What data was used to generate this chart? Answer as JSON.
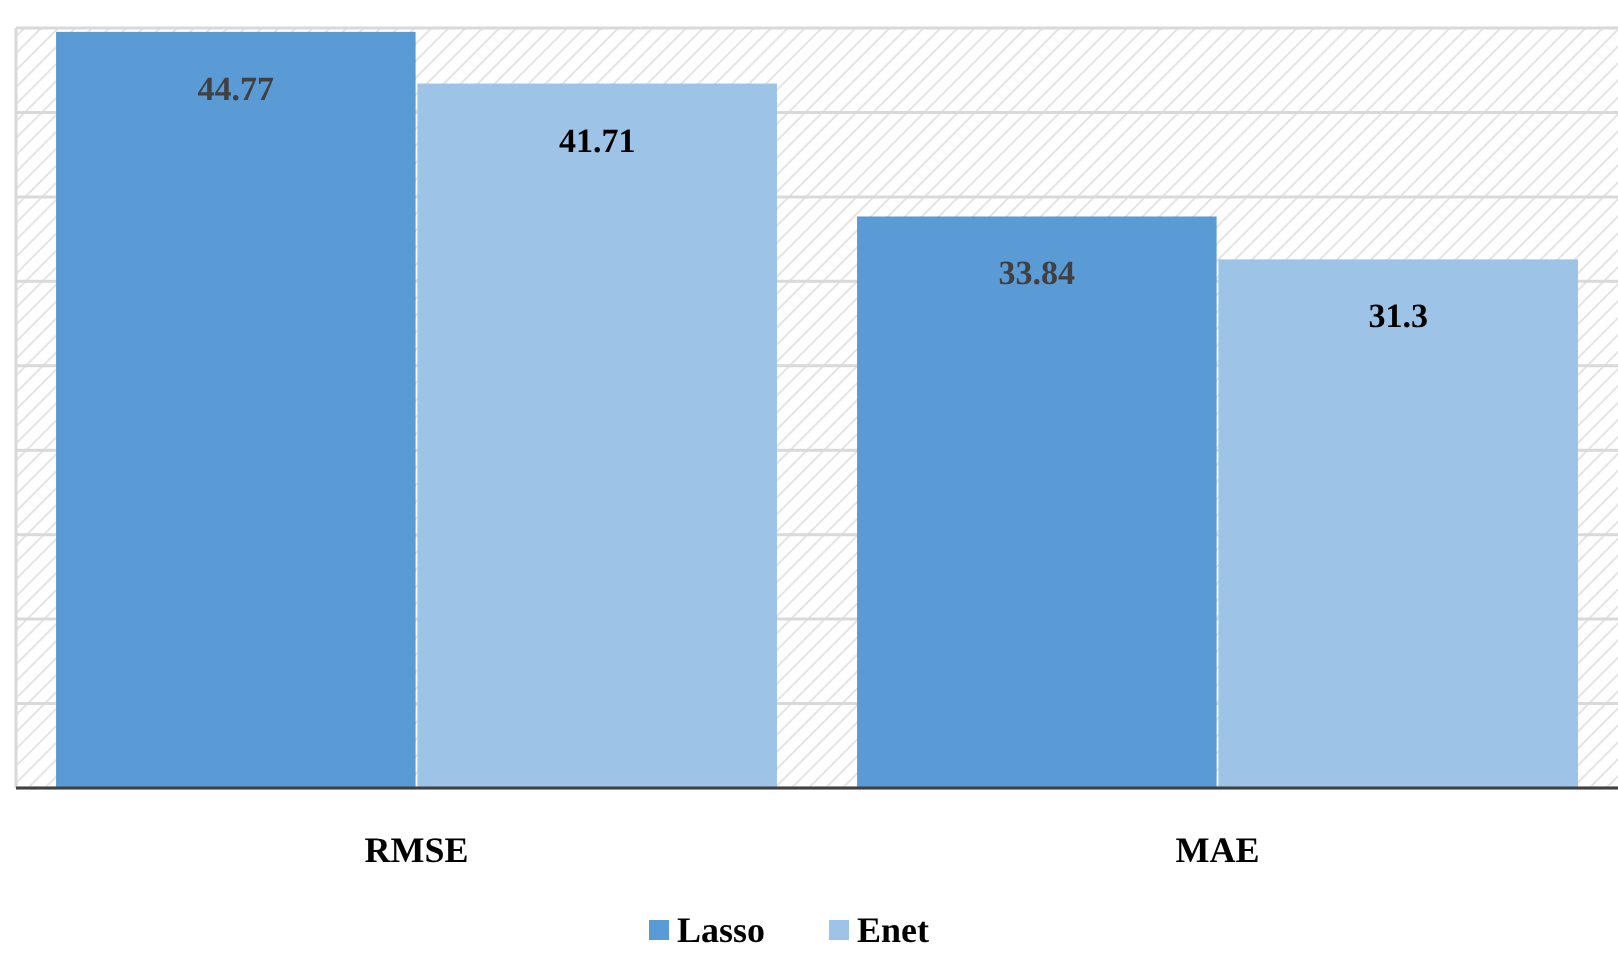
{
  "chart_data": {
    "type": "bar",
    "categories": [
      "RMSE",
      "MAE"
    ],
    "series": [
      {
        "name": "Lasso",
        "color": "#5b9bd5",
        "values": [
          44.77,
          33.84
        ]
      },
      {
        "name": "Enet",
        "color": "#9dc3e6",
        "values": [
          41.71,
          31.3
        ]
      }
    ],
    "ylim": [
      0,
      45
    ],
    "yticks": [
      {
        "value": 0,
        "label": null
      },
      {
        "value": 5,
        "label": null
      },
      {
        "value": 10,
        "label": null
      },
      {
        "value": 15,
        "label": null
      },
      {
        "value": 20,
        "label": null
      },
      {
        "value": 25,
        "label": null
      },
      {
        "value": 30,
        "label": null
      },
      {
        "value": 35,
        "label": null
      },
      {
        "value": 40,
        "label": null
      },
      {
        "value": 45,
        "label": null
      }
    ],
    "tick_labels": "x",
    "grid": "y",
    "data_labels": true,
    "legend": "bottom"
  }
}
